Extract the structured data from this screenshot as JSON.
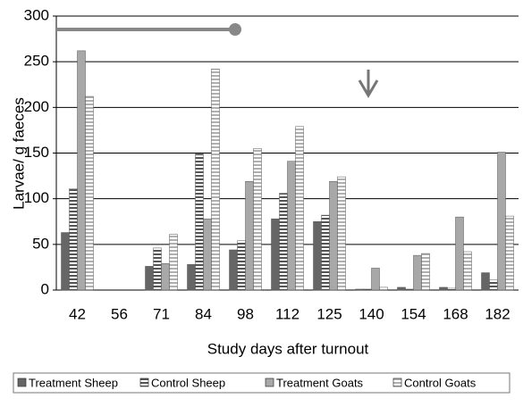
{
  "chart_data": {
    "type": "bar",
    "y_label": "Larvae/ g faeces",
    "x_label": "Study days after turnout",
    "categories": [
      "42",
      "56",
      "71",
      "84",
      "98",
      "112",
      "125",
      "140",
      "154",
      "168",
      "182"
    ],
    "series": [
      {
        "name": "Treatment Sheep",
        "color": "#666666",
        "hatch": false,
        "values": [
          63,
          0,
          26,
          28,
          44,
          78,
          75,
          1,
          3,
          3,
          19
        ]
      },
      {
        "name": "Control Sheep",
        "color": "#555555",
        "hatch": true,
        "values": [
          111,
          0,
          46,
          149,
          54,
          106,
          82,
          1,
          1,
          2,
          11
        ]
      },
      {
        "name": "Treatment Goats",
        "color": "#a8a8a8",
        "hatch": false,
        "values": [
          262,
          0,
          29,
          78,
          119,
          141,
          119,
          24,
          38,
          80,
          151
        ]
      },
      {
        "name": "Control Goats",
        "color": "#b0b0b0",
        "hatch": true,
        "values": [
          212,
          0,
          61,
          242,
          155,
          179,
          124,
          3,
          40,
          42,
          81
        ]
      }
    ],
    "ylim": [
      0,
      300
    ],
    "yticks": [
      0,
      50,
      100,
      150,
      200,
      250,
      300
    ],
    "grid": true
  }
}
